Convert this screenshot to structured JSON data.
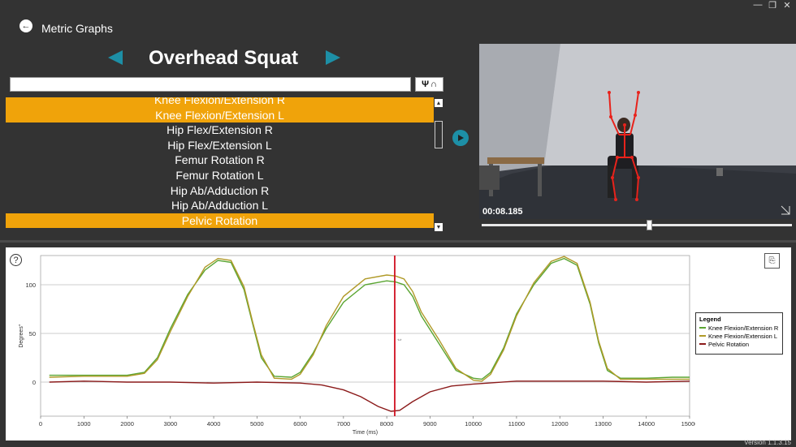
{
  "header": {
    "back_label": "Metric Graphs",
    "exercise_title": "Overhead Squat"
  },
  "search": {
    "value": "",
    "placeholder": ""
  },
  "filter_button": {
    "icons": [
      "body-icon",
      "squat-icon"
    ]
  },
  "metrics": [
    {
      "label": "Knee Flexion/Extension R",
      "selected": true
    },
    {
      "label": "Knee Flexion/Extension L",
      "selected": true
    },
    {
      "label": "Hip Flex/Extension R",
      "selected": false
    },
    {
      "label": "Hip Flex/Extension L",
      "selected": false
    },
    {
      "label": "Femur Rotation R",
      "selected": false
    },
    {
      "label": "Femur Rotation L",
      "selected": false
    },
    {
      "label": "Hip Ab/Adduction R",
      "selected": false
    },
    {
      "label": "Hip Ab/Adduction L",
      "selected": false
    },
    {
      "label": "Pelvic Rotation",
      "selected": true
    }
  ],
  "video": {
    "timecode": "00:08.185",
    "progress": 0.54
  },
  "colors": {
    "accent": "#f0a30a",
    "teal": "#1d8fa6",
    "cursor": "#d01020"
  },
  "chart_data": {
    "type": "line",
    "xlabel": "Time (ms)",
    "ylabel": "Degrees°",
    "xlim": [
      0,
      15000
    ],
    "ylim": [
      -35,
      130
    ],
    "x_ticks": [
      0,
      1000,
      2000,
      3000,
      4000,
      5000,
      6000,
      7000,
      8000,
      9000,
      10000,
      11000,
      12000,
      13000,
      14000,
      15000
    ],
    "y_ticks": [
      0,
      50,
      100
    ],
    "grid": true,
    "cursor_x": 8185,
    "legend": {
      "title": "Legend",
      "placement": "right"
    },
    "series": [
      {
        "name": "Knee Flexion/Extension R",
        "color": "#5aa532",
        "points": [
          [
            200,
            7
          ],
          [
            1000,
            7
          ],
          [
            2000,
            7
          ],
          [
            2400,
            10
          ],
          [
            2700,
            25
          ],
          [
            3000,
            55
          ],
          [
            3400,
            90
          ],
          [
            3800,
            115
          ],
          [
            4100,
            125
          ],
          [
            4400,
            123
          ],
          [
            4700,
            95
          ],
          [
            4900,
            60
          ],
          [
            5100,
            25
          ],
          [
            5400,
            6
          ],
          [
            5800,
            5
          ],
          [
            6000,
            10
          ],
          [
            6300,
            30
          ],
          [
            6600,
            55
          ],
          [
            7000,
            82
          ],
          [
            7500,
            100
          ],
          [
            8000,
            104
          ],
          [
            8200,
            103
          ],
          [
            8400,
            100
          ],
          [
            8600,
            88
          ],
          [
            8800,
            68
          ],
          [
            9200,
            40
          ],
          [
            9600,
            12
          ],
          [
            10000,
            4
          ],
          [
            10200,
            3
          ],
          [
            10400,
            10
          ],
          [
            10700,
            35
          ],
          [
            11000,
            70
          ],
          [
            11400,
            100
          ],
          [
            11800,
            122
          ],
          [
            12100,
            127
          ],
          [
            12400,
            120
          ],
          [
            12700,
            80
          ],
          [
            12900,
            40
          ],
          [
            13100,
            12
          ],
          [
            13400,
            4
          ],
          [
            14000,
            4
          ],
          [
            14600,
            5
          ],
          [
            15000,
            5
          ]
        ]
      },
      {
        "name": "Knee Flexion/Extension L",
        "color": "#b09a28",
        "points": [
          [
            200,
            5
          ],
          [
            1000,
            6
          ],
          [
            2000,
            6
          ],
          [
            2400,
            9
          ],
          [
            2700,
            23
          ],
          [
            3000,
            52
          ],
          [
            3400,
            88
          ],
          [
            3800,
            118
          ],
          [
            4100,
            127
          ],
          [
            4400,
            125
          ],
          [
            4700,
            98
          ],
          [
            4900,
            62
          ],
          [
            5100,
            28
          ],
          [
            5400,
            4
          ],
          [
            5800,
            3
          ],
          [
            6000,
            8
          ],
          [
            6300,
            28
          ],
          [
            6600,
            58
          ],
          [
            7000,
            88
          ],
          [
            7500,
            106
          ],
          [
            8000,
            110
          ],
          [
            8200,
            109
          ],
          [
            8400,
            106
          ],
          [
            8600,
            93
          ],
          [
            8800,
            72
          ],
          [
            9200,
            44
          ],
          [
            9600,
            14
          ],
          [
            10000,
            2
          ],
          [
            10200,
            1
          ],
          [
            10400,
            8
          ],
          [
            10700,
            33
          ],
          [
            11000,
            68
          ],
          [
            11400,
            102
          ],
          [
            11800,
            124
          ],
          [
            12100,
            129
          ],
          [
            12400,
            122
          ],
          [
            12700,
            82
          ],
          [
            12900,
            42
          ],
          [
            13100,
            14
          ],
          [
            13400,
            3
          ],
          [
            14000,
            3
          ],
          [
            14600,
            3
          ],
          [
            15000,
            3
          ]
        ]
      },
      {
        "name": "Pelvic Rotation",
        "color": "#8b1a1a",
        "points": [
          [
            200,
            0
          ],
          [
            1000,
            1
          ],
          [
            2000,
            0
          ],
          [
            3000,
            0
          ],
          [
            4000,
            -1
          ],
          [
            5000,
            0
          ],
          [
            6000,
            -1
          ],
          [
            6500,
            -3
          ],
          [
            7000,
            -8
          ],
          [
            7400,
            -15
          ],
          [
            7800,
            -25
          ],
          [
            8100,
            -30
          ],
          [
            8300,
            -29
          ],
          [
            8600,
            -20
          ],
          [
            9000,
            -10
          ],
          [
            9500,
            -4
          ],
          [
            10000,
            -2
          ],
          [
            11000,
            1
          ],
          [
            12000,
            1
          ],
          [
            13000,
            1
          ],
          [
            14000,
            0
          ],
          [
            15000,
            1
          ]
        ]
      }
    ]
  },
  "version": "Version 1.1.3.15"
}
